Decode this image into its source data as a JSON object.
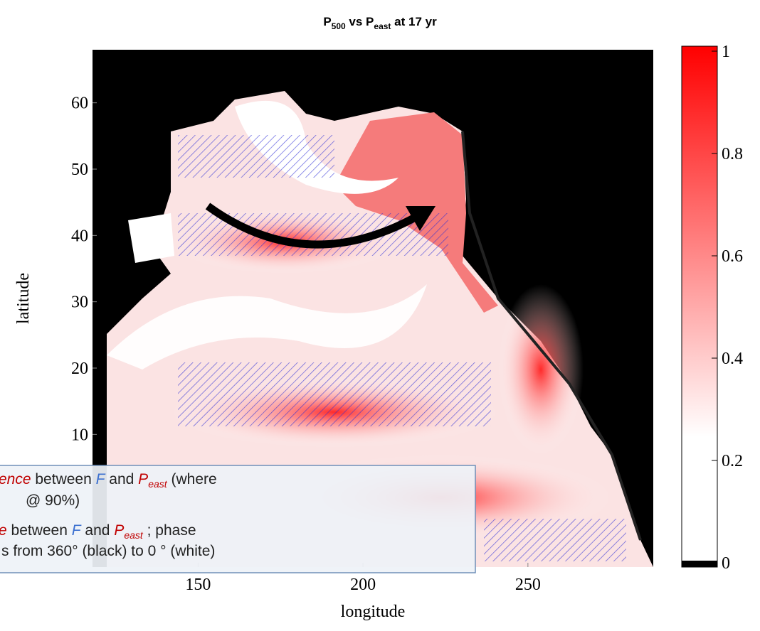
{
  "chart_data": {
    "type": "heatmap-map",
    "title": [
      {
        "text": "P"
      },
      {
        "text": "500",
        "sub": true
      },
      {
        "text": " vs P"
      },
      {
        "text": "east",
        "sub": true
      },
      {
        "text": " at 17 yr"
      }
    ],
    "x_label": "longitude",
    "y_label": "latitude",
    "xlim": [
      118,
      288
    ],
    "ylim": [
      -10,
      68
    ],
    "xticks": [
      150,
      200,
      250
    ],
    "yticks": [
      10,
      20,
      30,
      40,
      50,
      60
    ],
    "background": "#000000",
    "colorbar": {
      "lim": [
        0,
        1
      ],
      "ticks": [
        0,
        0.2,
        0.4,
        0.6,
        0.8,
        1
      ],
      "colors": [
        "#ffffff",
        "#ff0000"
      ],
      "low_color": "#000000"
    },
    "hatch_color": "#2b2bd6",
    "legend": {
      "lines": [
        [
          {
            "text": "ence",
            "color": "#c00000",
            "italic": true
          },
          {
            "text": " between "
          },
          {
            "text": "F",
            "color": "#3a6fd0",
            "italic": true
          },
          {
            "text": " and "
          },
          {
            "text": "P",
            "color": "#c00000",
            "italic": true
          },
          {
            "text": "east",
            "color": "#c00000",
            "italic": true,
            "sub": true
          },
          {
            "text": " (where"
          }
        ],
        [
          {
            "text": "@ 90%)"
          }
        ],
        [
          {
            "text": "e",
            "color": "#c00000",
            "italic": true
          },
          {
            "text": " between "
          },
          {
            "text": "F",
            "color": "#3a6fd0",
            "italic": true
          },
          {
            "text": " and "
          },
          {
            "text": "P",
            "color": "#c00000",
            "italic": true
          },
          {
            "text": "east",
            "color": "#c00000",
            "italic": true,
            "sub": true
          },
          {
            "text": " ; phase"
          }
        ],
        [
          {
            "text": "s from 360° (black) to 0 ° (white)"
          }
        ]
      ]
    }
  }
}
